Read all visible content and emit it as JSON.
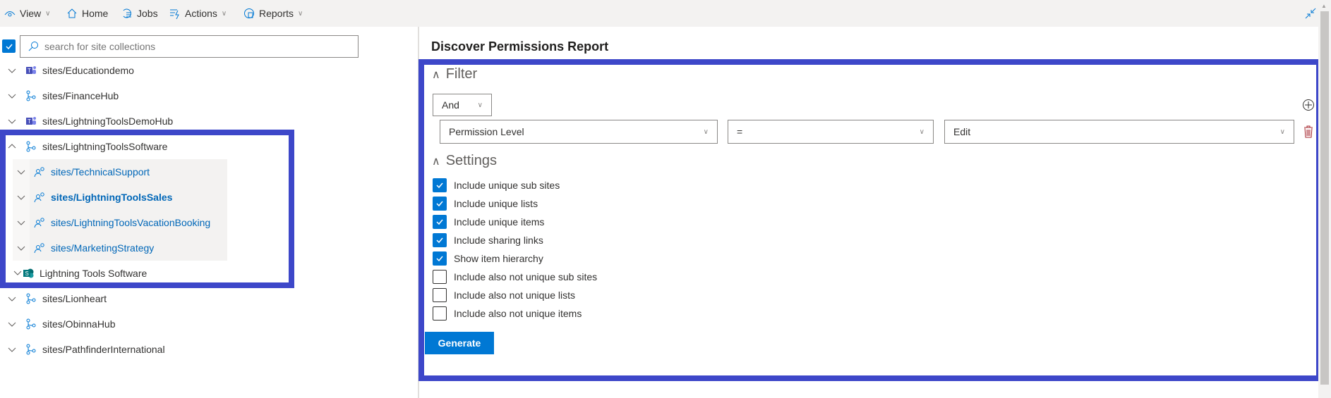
{
  "toolbar": {
    "view": "View",
    "home": "Home",
    "jobs": "Jobs",
    "actions": "Actions",
    "reports": "Reports"
  },
  "search": {
    "placeholder": "search for site collections",
    "select_all_checked": true
  },
  "tree": [
    {
      "label": "sites/Educationdemo",
      "icon": "teams-icon",
      "expanded": false
    },
    {
      "label": "sites/FinanceHub",
      "icon": "hub-icon",
      "expanded": false
    },
    {
      "label": "sites/LightningToolsDemoHub",
      "icon": "teams-icon",
      "expanded": false
    },
    {
      "label": "sites/LightningToolsSoftware",
      "icon": "hub-icon",
      "expanded": true,
      "children": [
        {
          "label": "sites/TechnicalSupport",
          "icon": "people-icon"
        },
        {
          "label": "sites/LightningToolsSales",
          "icon": "people-icon",
          "selected": true
        },
        {
          "label": "sites/LightningToolsVacationBooking",
          "icon": "people-icon"
        },
        {
          "label": "sites/MarketingStrategy",
          "icon": "people-icon"
        },
        {
          "label": "Lightning Tools Software",
          "icon": "sharepoint-icon"
        }
      ]
    },
    {
      "label": "sites/Lionheart",
      "icon": "hub-icon",
      "expanded": false
    },
    {
      "label": "sites/ObinnaHub",
      "icon": "hub-icon",
      "expanded": false
    },
    {
      "label": "sites/PathfinderInternational",
      "icon": "hub-icon",
      "expanded": false
    }
  ],
  "report": {
    "title": "Discover Permissions Report",
    "filter_label": "Filter",
    "operator": "And",
    "field": "Permission Level",
    "comparison": "=",
    "value": "Edit",
    "settings_label": "Settings",
    "settings": [
      {
        "label": "Include unique sub sites",
        "checked": true
      },
      {
        "label": "Include unique lists",
        "checked": true
      },
      {
        "label": "Include unique items",
        "checked": true
      },
      {
        "label": "Include sharing links",
        "checked": true
      },
      {
        "label": "Show item hierarchy",
        "checked": true
      },
      {
        "label": "Include also not unique sub sites",
        "checked": false
      },
      {
        "label": "Include also not unique lists",
        "checked": false
      },
      {
        "label": "Include also not unique items",
        "checked": false
      }
    ],
    "generate": "Generate"
  },
  "colors": {
    "accent": "#0078d4",
    "highlight": "#3d47c9",
    "delete": "#a4262c"
  }
}
